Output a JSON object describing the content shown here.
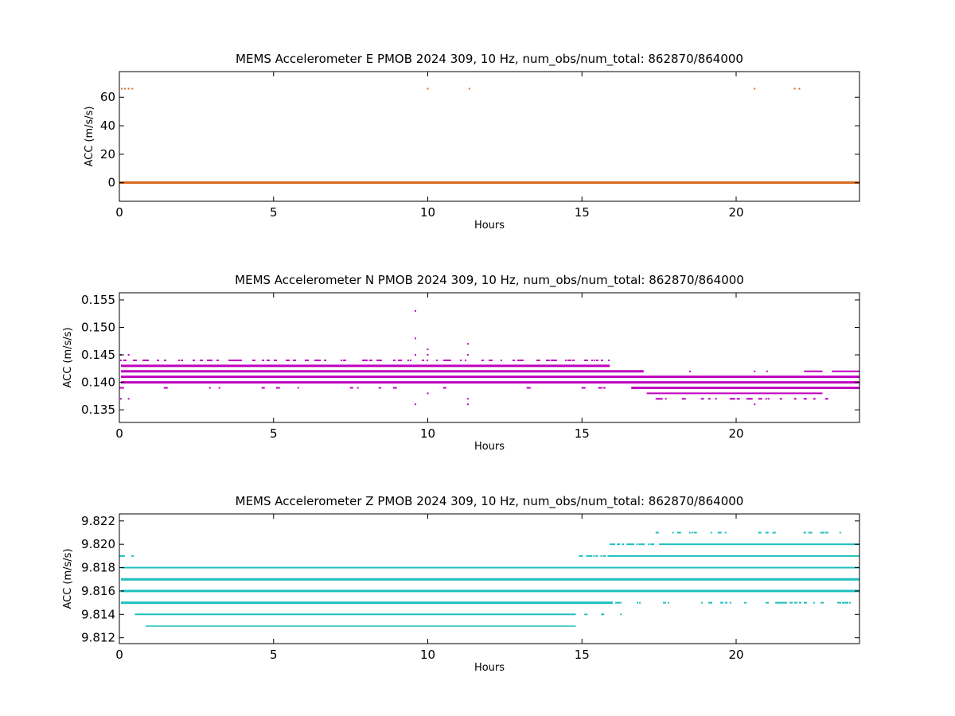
{
  "chart_data": [
    {
      "type": "scatter",
      "title": "MEMS Accelerometer E PMOB 2024 309, 10 Hz, num_obs/num_total: 862870/864000",
      "xlabel": "Hours",
      "ylabel": "ACC (m/s/s)",
      "xlim": [
        0,
        24
      ],
      "ylim": [
        -13,
        78
      ],
      "xticks": [
        "0",
        "5",
        "10",
        "15",
        "20"
      ],
      "xtick_values": [
        0,
        5,
        10,
        15,
        20
      ],
      "yticks": [
        "0",
        "20",
        "40",
        "60"
      ],
      "ytick_values": [
        0,
        20,
        40,
        60
      ],
      "grid": false,
      "color": "#d9691f",
      "series": [
        {
          "bands": [
            {
              "y": 0.14,
              "x_start": 0,
              "x_end": 24,
              "weight": 3
            }
          ],
          "points": [
            {
              "x": 0.08,
              "y": 66
            },
            {
              "x": 0.18,
              "y": 66
            },
            {
              "x": 0.3,
              "y": 66
            },
            {
              "x": 0.42,
              "y": 66
            },
            {
              "x": 10.0,
              "y": 66
            },
            {
              "x": 11.35,
              "y": 66
            },
            {
              "x": 20.6,
              "y": 66
            },
            {
              "x": 21.9,
              "y": 66
            },
            {
              "x": 22.05,
              "y": 66
            }
          ]
        }
      ]
    },
    {
      "type": "scatter",
      "title": "MEMS Accelerometer N PMOB 2024 309, 10 Hz, num_obs/num_total: 862870/864000",
      "xlabel": "Hours",
      "ylabel": "ACC (m/s/s)",
      "xlim": [
        0,
        24
      ],
      "ylim": [
        0.1327,
        0.1563
      ],
      "xticks": [
        "0",
        "5",
        "10",
        "15",
        "20"
      ],
      "xtick_values": [
        0,
        5,
        10,
        15,
        20
      ],
      "yticks": [
        "0.135",
        "0.140",
        "0.145",
        "0.150",
        "0.155"
      ],
      "ytick_values": [
        0.135,
        0.14,
        0.145,
        0.15,
        0.155
      ],
      "grid": false,
      "color": "#bf00bf",
      "series": [
        {
          "bands": [
            {
              "y": 0.143,
              "x_start": 0.05,
              "x_end": 15.9,
              "weight": 3
            },
            {
              "y": 0.142,
              "x_start": 0.05,
              "x_end": 17.0,
              "weight": 3
            },
            {
              "y": 0.141,
              "x_start": 0.05,
              "x_end": 24,
              "weight": 3
            },
            {
              "y": 0.14,
              "x_start": 0.05,
              "x_end": 24,
              "weight": 3
            },
            {
              "y": 0.139,
              "x_start": 16.6,
              "x_end": 24,
              "weight": 3
            },
            {
              "y": 0.138,
              "x_start": 17.1,
              "x_end": 22.8,
              "weight": 2
            },
            {
              "y": 0.142,
              "x_start": 22.2,
              "x_end": 22.8,
              "weight": 2
            },
            {
              "y": 0.142,
              "x_start": 23.1,
              "x_end": 24,
              "weight": 2
            },
            {
              "y": 0.139,
              "x_start": 0.0,
              "x_end": 0.15,
              "weight": 2
            }
          ],
          "sparse_rows": [
            {
              "y": 0.144,
              "x_start": 0.05,
              "x_end": 15.9,
              "density": 0.35
            },
            {
              "y": 0.139,
              "x_start": 0.2,
              "x_end": 15.9,
              "density": 0.06
            },
            {
              "y": 0.137,
              "x_start": 17.0,
              "x_end": 23.0,
              "density": 0.3
            },
            {
              "y": 0.141,
              "x_start": 17.5,
              "x_end": 22.2,
              "density": 0.1
            }
          ],
          "points": [
            {
              "x": 9.6,
              "y": 0.153
            },
            {
              "x": 9.6,
              "y": 0.148
            },
            {
              "x": 9.6,
              "y": 0.145
            },
            {
              "x": 9.6,
              "y": 0.136
            },
            {
              "x": 10.0,
              "y": 0.146
            },
            {
              "x": 10.0,
              "y": 0.145
            },
            {
              "x": 10.0,
              "y": 0.138
            },
            {
              "x": 11.3,
              "y": 0.147
            },
            {
              "x": 11.3,
              "y": 0.145
            },
            {
              "x": 11.3,
              "y": 0.137
            },
            {
              "x": 11.3,
              "y": 0.136
            },
            {
              "x": 0.3,
              "y": 0.145
            },
            {
              "x": 0.05,
              "y": 0.145
            },
            {
              "x": 0.05,
              "y": 0.144
            },
            {
              "x": 0.05,
              "y": 0.137
            },
            {
              "x": 0.3,
              "y": 0.137
            },
            {
              "x": 20.6,
              "y": 0.136
            },
            {
              "x": 18.5,
              "y": 0.142
            },
            {
              "x": 20.6,
              "y": 0.142
            },
            {
              "x": 21.0,
              "y": 0.142
            }
          ]
        }
      ]
    },
    {
      "type": "scatter",
      "title": "MEMS Accelerometer Z PMOB 2024 309, 10 Hz, num_obs/num_total: 862870/864000",
      "xlabel": "Hours",
      "ylabel": "ACC (m/s/s)",
      "xlim": [
        0,
        24
      ],
      "ylim": [
        9.8115,
        9.8226
      ],
      "xticks": [
        "0",
        "5",
        "10",
        "15",
        "20"
      ],
      "xtick_values": [
        0,
        5,
        10,
        15,
        20
      ],
      "yticks": [
        "9.812",
        "9.814",
        "9.816",
        "9.818",
        "9.820",
        "9.822"
      ],
      "ytick_values": [
        9.812,
        9.814,
        9.816,
        9.818,
        9.82,
        9.822
      ],
      "grid": false,
      "color": "#1fbfbf",
      "series": [
        {
          "bands": [
            {
              "y": 9.817,
              "x_start": 0.05,
              "x_end": 24,
              "weight": 3
            },
            {
              "y": 9.816,
              "x_start": 0.05,
              "x_end": 24,
              "weight": 3
            },
            {
              "y": 9.815,
              "x_start": 0.05,
              "x_end": 16.0,
              "weight": 3
            },
            {
              "y": 9.818,
              "x_start": 0.05,
              "x_end": 24,
              "weight": 2
            },
            {
              "y": 9.819,
              "x_start": 16.0,
              "x_end": 24,
              "weight": 2
            },
            {
              "y": 9.82,
              "x_start": 17.5,
              "x_end": 24,
              "weight": 2
            },
            {
              "y": 9.814,
              "x_start": 0.5,
              "x_end": 14.8,
              "weight": 2
            },
            {
              "y": 9.813,
              "x_start": 0.85,
              "x_end": 14.8,
              "weight": 1.5
            }
          ],
          "sparse_rows": [
            {
              "y": 9.815,
              "x_start": 16.0,
              "x_end": 24,
              "density": 0.25
            },
            {
              "y": 9.819,
              "x_start": 14.9,
              "x_end": 16.0,
              "density": 0.5
            },
            {
              "y": 9.82,
              "x_start": 15.9,
              "x_end": 17.5,
              "density": 0.5
            },
            {
              "y": 9.821,
              "x_start": 17.0,
              "x_end": 23.5,
              "density": 0.2
            },
            {
              "y": 9.814,
              "x_start": 15.0,
              "x_end": 16.5,
              "density": 0.2
            },
            {
              "y": 9.819,
              "x_start": 0.0,
              "x_end": 0.6,
              "density": 0.35
            }
          ],
          "points": []
        }
      ]
    }
  ]
}
